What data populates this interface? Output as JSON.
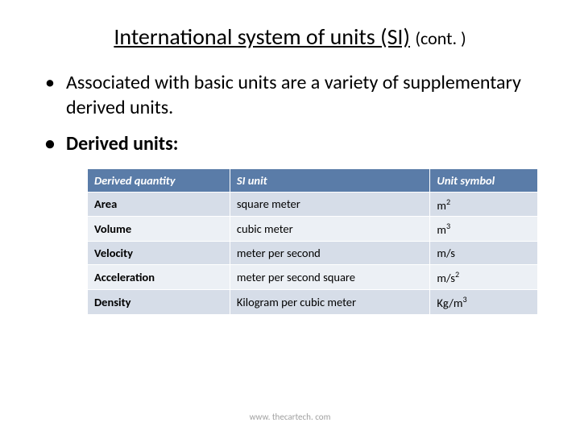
{
  "title": {
    "main": "International system of units (SI)",
    "suffix": "(cont. )"
  },
  "bullet_main": "Associated with basic units are a variety of supplementary derived units.",
  "bullet_sub": "Derived units:",
  "table": {
    "header_bg": "#5a7ca8",
    "header_fg": "#ffffff",
    "row_odd_bg": "#d6dde8",
    "row_even_bg": "#ecf0f5",
    "columns": [
      "Derived quantity",
      "SI unit",
      "Unit symbol"
    ],
    "rows": [
      {
        "q": "Area",
        "u": "square meter",
        "s": "m",
        "sup": "2"
      },
      {
        "q": "Volume",
        "u": "cubic meter",
        "s": "m",
        "sup": "3"
      },
      {
        "q": "Velocity",
        "u": "meter per second",
        "s": "m/s",
        "sup": ""
      },
      {
        "q": "Acceleration",
        "u": "meter per second square",
        "s": "m/s",
        "sup": "2"
      },
      {
        "q": "Density",
        "u": "Kilogram per cubic meter",
        "s": "Kg/m",
        "sup": "3"
      }
    ]
  },
  "footer": "www. thecartech. com"
}
